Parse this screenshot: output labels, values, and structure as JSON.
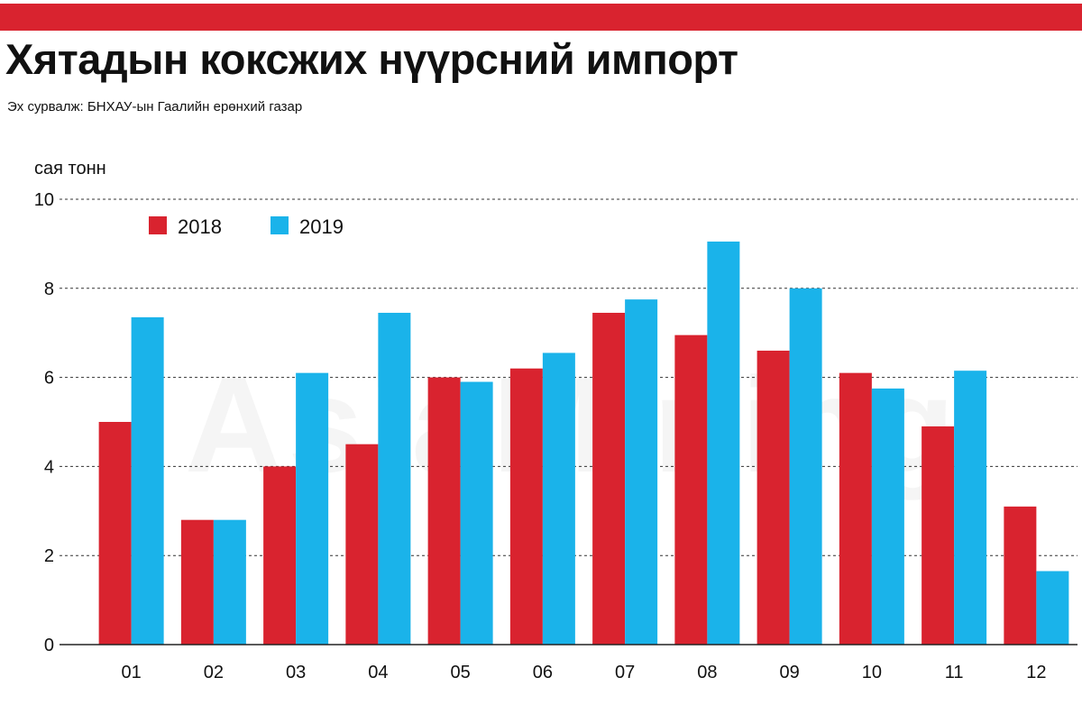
{
  "header": {
    "title": "Хятадын коксжих нүүрсний импорт",
    "source": "Эх сурвалж: БНХАУ-ын Гаалийн ерөнхий газар",
    "watermark": "AsiaMining"
  },
  "colors": {
    "accent_bar": "#d9232f",
    "series_2018": "#d9232f",
    "series_2019": "#1ab3ea"
  },
  "chart_data": {
    "type": "bar",
    "ylabel": "сая тонн",
    "xlabel": "",
    "ylim": [
      0,
      10
    ],
    "yticks": [
      0,
      2,
      4,
      6,
      8,
      10
    ],
    "grid": true,
    "legend_position": "top-left",
    "categories": [
      "01",
      "02",
      "03",
      "04",
      "05",
      "06",
      "07",
      "08",
      "09",
      "10",
      "11",
      "12"
    ],
    "series": [
      {
        "name": "2018",
        "color": "#d9232f",
        "values": [
          5.0,
          2.8,
          4.0,
          4.5,
          6.0,
          6.2,
          7.45,
          6.95,
          6.6,
          6.1,
          4.9,
          3.1
        ]
      },
      {
        "name": "2019",
        "color": "#1ab3ea",
        "values": [
          7.35,
          2.8,
          6.1,
          7.45,
          5.9,
          6.55,
          7.75,
          9.05,
          8.0,
          5.75,
          6.15,
          1.65
        ]
      }
    ]
  }
}
